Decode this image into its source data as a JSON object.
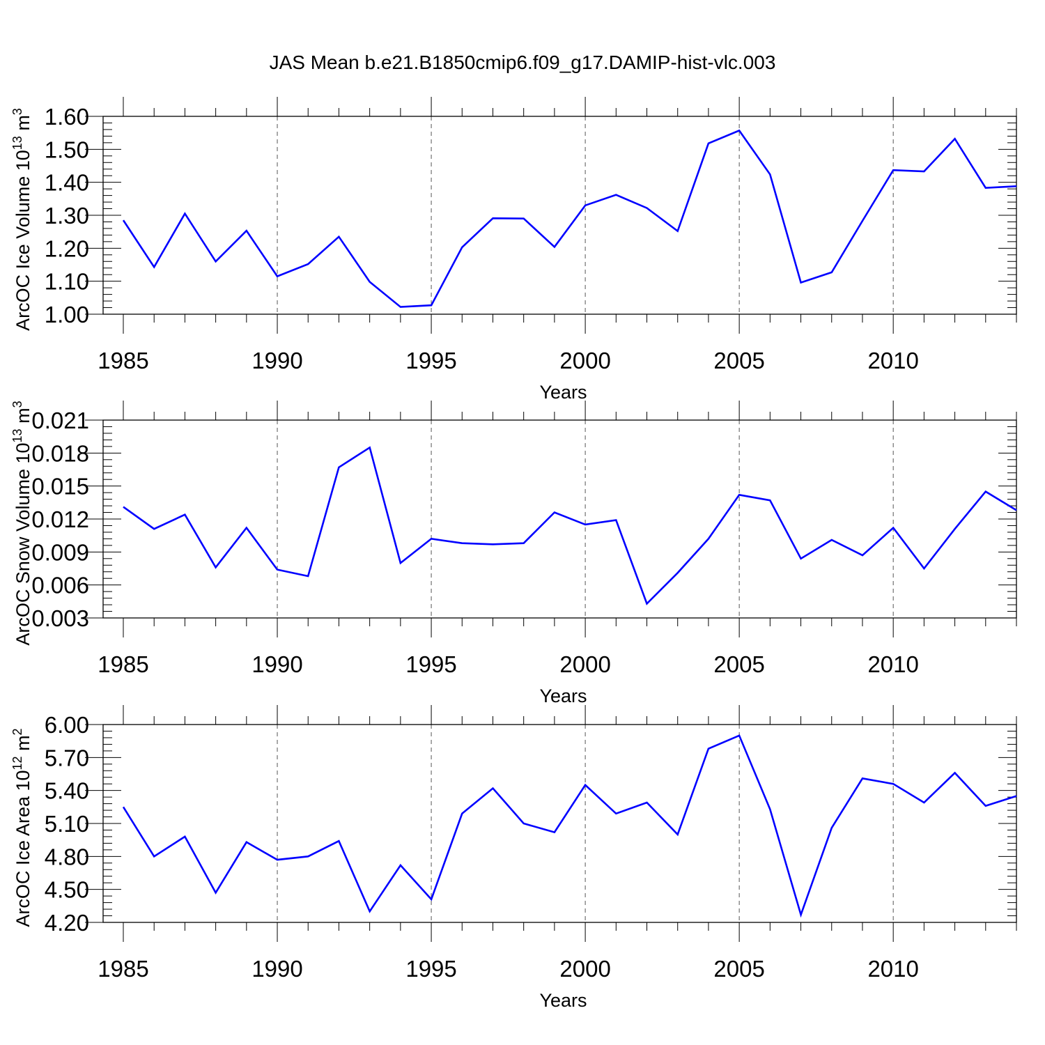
{
  "figure_title": "JAS Mean b.e21.B1850cmip6.f09_g17.DAMIP-hist-vlc.003",
  "colors": {
    "line": "#0000ff",
    "axis": "#000000",
    "grid": "#555555"
  },
  "chart_data": [
    {
      "type": "line",
      "ylabel": {
        "text": "ArcOC Ice Volume 10",
        "exp": "13",
        "unit": " m",
        "unit_exp": "3"
      },
      "xlabel": "Years",
      "ylim": [
        1.0,
        1.6
      ],
      "yticks": [
        1.0,
        1.1,
        1.2,
        1.3,
        1.4,
        1.5,
        1.6
      ],
      "ytick_labels": [
        "1.00",
        "1.10",
        "1.20",
        "1.30",
        "1.40",
        "1.50",
        "1.60"
      ],
      "xlim": [
        1985,
        2014
      ],
      "xticks": [
        1985,
        1990,
        1995,
        2000,
        2005,
        2010
      ],
      "xtick_labels": [
        "1985",
        "1990",
        "1995",
        "2000",
        "2005",
        "2010"
      ],
      "grid": "vertical-dashed",
      "x": [
        1985,
        1986,
        1987,
        1988,
        1989,
        1990,
        1991,
        1992,
        1993,
        1994,
        1995,
        1996,
        1997,
        1998,
        1999,
        2000,
        2001,
        2002,
        2003,
        2004,
        2005,
        2006,
        2007,
        2008,
        2009,
        2010,
        2011,
        2012,
        2013,
        2014
      ],
      "y": [
        1.285,
        1.143,
        1.305,
        1.16,
        1.253,
        1.115,
        1.152,
        1.235,
        1.098,
        1.022,
        1.027,
        1.203,
        1.291,
        1.29,
        1.204,
        1.33,
        1.362,
        1.322,
        1.252,
        1.518,
        1.557,
        1.424,
        1.096,
        1.127,
        1.283,
        1.437,
        1.433,
        1.532,
        1.383,
        1.388
      ]
    },
    {
      "type": "line",
      "ylabel": {
        "text": "ArcOC Snow Volume 10",
        "exp": "13",
        "unit": " m",
        "unit_exp": "3"
      },
      "xlabel": "Years",
      "ylim": [
        0.003,
        0.021
      ],
      "yticks": [
        0.003,
        0.006,
        0.009,
        0.012,
        0.015,
        0.018,
        0.021
      ],
      "ytick_labels": [
        "0.003",
        "0.006",
        "0.009",
        "0.012",
        "0.015",
        "0.018",
        "0.021"
      ],
      "xlim": [
        1985,
        2014
      ],
      "xticks": [
        1985,
        1990,
        1995,
        2000,
        2005,
        2010
      ],
      "xtick_labels": [
        "1985",
        "1990",
        "1995",
        "2000",
        "2005",
        "2010"
      ],
      "grid": "vertical-dashed",
      "x": [
        1985,
        1986,
        1987,
        1988,
        1989,
        1990,
        1991,
        1992,
        1993,
        1994,
        1995,
        1996,
        1997,
        1998,
        1999,
        2000,
        2001,
        2002,
        2003,
        2004,
        2005,
        2006,
        2007,
        2008,
        2009,
        2010,
        2011,
        2012,
        2013,
        2014
      ],
      "y": [
        0.0131,
        0.0111,
        0.0124,
        0.0076,
        0.0112,
        0.0074,
        0.0068,
        0.0167,
        0.0185,
        0.008,
        0.0102,
        0.0098,
        0.0097,
        0.0098,
        0.0126,
        0.0115,
        0.0119,
        0.0043,
        0.0071,
        0.0102,
        0.0142,
        0.0137,
        0.0084,
        0.0101,
        0.0087,
        0.0112,
        0.0075,
        0.0111,
        0.0145,
        0.0128
      ]
    },
    {
      "type": "line",
      "ylabel": {
        "text": "ArcOC Ice Area 10",
        "exp": "12",
        "unit": " m",
        "unit_exp": "2"
      },
      "xlabel": "Years",
      "ylim": [
        4.2,
        6.0
      ],
      "yticks": [
        4.2,
        4.5,
        4.8,
        5.1,
        5.4,
        5.7,
        6.0
      ],
      "ytick_labels": [
        "4.20",
        "4.50",
        "4.80",
        "5.10",
        "5.40",
        "5.70",
        "6.00"
      ],
      "xlim": [
        1985,
        2014
      ],
      "xticks": [
        1985,
        1990,
        1995,
        2000,
        2005,
        2010
      ],
      "xtick_labels": [
        "1985",
        "1990",
        "1995",
        "2000",
        "2005",
        "2010"
      ],
      "grid": "vertical-dashed",
      "x": [
        1985,
        1986,
        1987,
        1988,
        1989,
        1990,
        1991,
        1992,
        1993,
        1994,
        1995,
        1996,
        1997,
        1998,
        1999,
        2000,
        2001,
        2002,
        2003,
        2004,
        2005,
        2006,
        2007,
        2008,
        2009,
        2010,
        2011,
        2012,
        2013,
        2014
      ],
      "y": [
        5.25,
        4.8,
        4.98,
        4.47,
        4.93,
        4.77,
        4.8,
        4.94,
        4.3,
        4.72,
        4.41,
        5.19,
        5.42,
        5.1,
        5.02,
        5.45,
        5.19,
        5.29,
        5.0,
        5.78,
        5.9,
        5.23,
        4.27,
        5.06,
        5.51,
        5.46,
        5.29,
        5.56,
        5.26,
        5.35
      ]
    }
  ]
}
